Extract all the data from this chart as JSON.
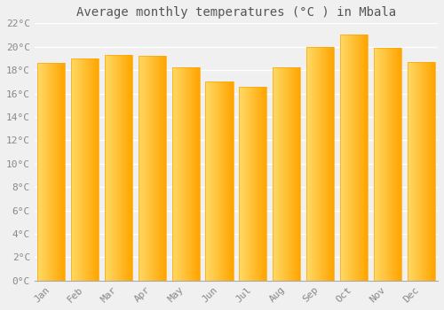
{
  "title": "Average monthly temperatures (°C ) in Mbala",
  "months": [
    "Jan",
    "Feb",
    "Mar",
    "Apr",
    "May",
    "Jun",
    "Jul",
    "Aug",
    "Sep",
    "Oct",
    "Nov",
    "Dec"
  ],
  "values": [
    18.6,
    19.0,
    19.3,
    19.2,
    18.2,
    17.0,
    16.6,
    18.2,
    20.0,
    21.0,
    19.9,
    18.7
  ],
  "bar_color_left": "#FFD966",
  "bar_color_right": "#FFA500",
  "bar_color_mid": "#FFC125",
  "ylim": [
    0,
    22
  ],
  "yticks": [
    0,
    2,
    4,
    6,
    8,
    10,
    12,
    14,
    16,
    18,
    20,
    22
  ],
  "background_color": "#f0f0f0",
  "plot_bg_color": "#f0f0f0",
  "grid_color": "#ffffff",
  "title_fontsize": 10,
  "tick_fontsize": 8,
  "tick_color": "#888888",
  "title_color": "#555555",
  "font_family": "monospace",
  "bar_width": 0.82
}
